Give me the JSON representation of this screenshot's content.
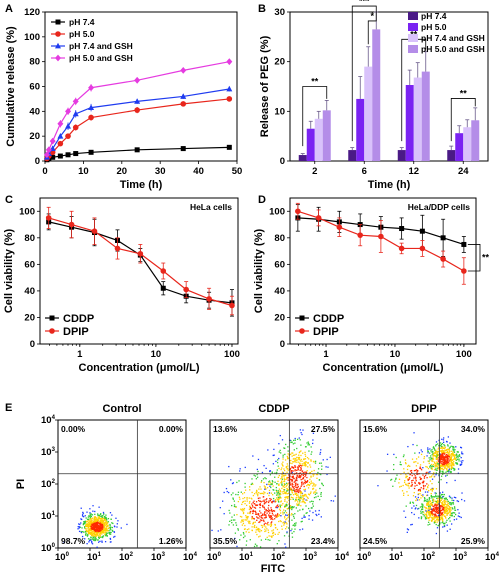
{
  "chart_data": [
    {
      "panel": "A",
      "type": "line",
      "xlabel": "Time (h)",
      "ylabel": "Cumulative release (%)",
      "xlim": [
        0,
        50
      ],
      "ylim": [
        0,
        120
      ],
      "xticks": [
        "0",
        "10",
        "20",
        "30",
        "40",
        "50"
      ],
      "yticks": [
        "0",
        "20",
        "40",
        "60",
        "80",
        "100",
        "120"
      ],
      "legend_position": "top-left",
      "series": [
        {
          "name": "pH 7.4",
          "color": "#000000",
          "marker": "square",
          "x": [
            0.5,
            1,
            2,
            4,
            6,
            8,
            12,
            24,
            36,
            48
          ],
          "y": [
            1,
            2,
            3,
            4,
            5,
            6,
            7,
            9,
            10,
            11
          ],
          "err": [
            0.5,
            0.5,
            0.5,
            0.8,
            0.8,
            0.8,
            1,
            1,
            1,
            1.2
          ]
        },
        {
          "name": "pH 5.0",
          "color": "#e8261c",
          "marker": "circle",
          "x": [
            0.5,
            1,
            2,
            4,
            6,
            8,
            12,
            24,
            36,
            48
          ],
          "y": [
            2,
            4,
            7,
            14,
            20,
            27,
            35,
            41,
            46,
            50
          ],
          "err": [
            1,
            1,
            1.5,
            2,
            2,
            2.5,
            2.5,
            2.5,
            2,
            2
          ]
        },
        {
          "name": "pH 7.4 and GSH",
          "color": "#1f3cf0",
          "marker": "triangle",
          "x": [
            0.5,
            1,
            2,
            4,
            6,
            8,
            12,
            24,
            36,
            48
          ],
          "y": [
            3,
            6,
            10,
            20,
            28,
            38,
            43,
            48,
            52,
            58
          ],
          "err": [
            1,
            1,
            2,
            2,
            3,
            3,
            3,
            2,
            2,
            2
          ]
        },
        {
          "name": "pH 5.0 and GSH",
          "color": "#e53be0",
          "marker": "diamond",
          "x": [
            0.5,
            1,
            2,
            4,
            6,
            8,
            12,
            24,
            36,
            48
          ],
          "y": [
            5,
            9,
            16,
            30,
            40,
            48,
            59,
            65,
            73,
            80
          ],
          "err": [
            1,
            1.5,
            2,
            3,
            3,
            3,
            3,
            2,
            2,
            2
          ]
        }
      ]
    },
    {
      "panel": "B",
      "type": "bar",
      "xlabel": "Time (h)",
      "ylabel": "Release of PEG (%)",
      "categories": [
        "2",
        "6",
        "12",
        "24"
      ],
      "ylim": [
        0,
        30
      ],
      "yticks": [
        "0",
        "10",
        "20",
        "30"
      ],
      "legend_position": "top-right",
      "series": [
        {
          "name": "pH 7.4",
          "color": "#4a1a86",
          "values": [
            1.2,
            2.2,
            2.2,
            2.2
          ],
          "err": [
            0.3,
            0.5,
            0.5,
            0.8
          ]
        },
        {
          "name": "pH 5.0",
          "color": "#7a23f2",
          "values": [
            6.5,
            12.5,
            15.3,
            5.6
          ],
          "err": [
            1.5,
            4.5,
            3,
            1.5
          ]
        },
        {
          "name": "pH 7.4 and GSH",
          "color": "#d9c2fb",
          "values": [
            8.5,
            19,
            16.8,
            6.8
          ],
          "err": [
            1.5,
            4,
            3,
            1.5
          ]
        },
        {
          "name": "pH 5.0 and GSH",
          "color": "#b48de8",
          "values": [
            10.2,
            26.5,
            18,
            8.2
          ],
          "err": [
            2,
            3.5,
            4,
            2.5
          ]
        }
      ],
      "annotations": [
        "**",
        "***",
        "*",
        "**",
        "**"
      ]
    },
    {
      "panel": "C",
      "type": "line",
      "title": "HeLa cells",
      "xlabel": "Concentration (μmol/L)",
      "ylabel": "Cell viability (%)",
      "xscale": "log",
      "xlim": [
        0.3,
        120
      ],
      "ylim": [
        0,
        110
      ],
      "xticks": [
        "1",
        "10",
        "100"
      ],
      "yticks": [
        "0",
        "20",
        "40",
        "60",
        "80",
        "100"
      ],
      "legend_position": "bottom-left",
      "series": [
        {
          "name": "CDDP",
          "color": "#000000",
          "marker": "square",
          "x": [
            0.39,
            0.78,
            1.56,
            3.13,
            6.25,
            12.5,
            25,
            50,
            100
          ],
          "y": [
            92,
            88,
            84,
            78,
            67,
            42,
            36,
            33,
            31
          ],
          "err": [
            6,
            8,
            10,
            8,
            5,
            5,
            5,
            6,
            10
          ]
        },
        {
          "name": "DPIP",
          "color": "#e8261c",
          "marker": "circle",
          "x": [
            0.39,
            0.78,
            1.56,
            3.13,
            6.25,
            12.5,
            25,
            50,
            100
          ],
          "y": [
            95,
            90,
            85,
            72,
            68,
            55,
            41,
            34,
            29
          ],
          "err": [
            8,
            10,
            10,
            8,
            7,
            6,
            6,
            8,
            7
          ]
        }
      ]
    },
    {
      "panel": "D",
      "type": "line",
      "title": "HeLa/DDP cells",
      "xlabel": "Concentration (μmol/L)",
      "ylabel": "Cell viability (%)",
      "xscale": "log",
      "xlim": [
        0.3,
        150
      ],
      "ylim": [
        0,
        110
      ],
      "xticks": [
        "1",
        "10",
        "100"
      ],
      "yticks": [
        "0",
        "20",
        "40",
        "60",
        "80",
        "100"
      ],
      "legend_position": "bottom-left",
      "series": [
        {
          "name": "CDDP",
          "color": "#000000",
          "marker": "square",
          "x": [
            0.39,
            0.78,
            1.56,
            3.13,
            6.25,
            12.5,
            25,
            50,
            100
          ],
          "y": [
            95,
            94,
            92,
            90,
            88,
            87,
            85,
            80,
            75
          ],
          "err": [
            10,
            9,
            8,
            8,
            8,
            8,
            12,
            14,
            6
          ]
        },
        {
          "name": "DPIP",
          "color": "#e8261c",
          "marker": "circle",
          "x": [
            0.39,
            0.78,
            1.56,
            3.13,
            6.25,
            12.5,
            25,
            50,
            100
          ],
          "y": [
            100,
            95,
            88,
            82,
            81,
            72,
            72,
            64,
            55
          ],
          "err": [
            6,
            6,
            7,
            8,
            12,
            4,
            6,
            6,
            10
          ]
        }
      ],
      "annotations": [
        "**"
      ]
    },
    {
      "panel": "E",
      "type": "scatter",
      "xlabel": "FITC",
      "ylabel": "PI",
      "xscale": "log",
      "yscale": "log",
      "xlim": [
        1,
        10000
      ],
      "ylim": [
        1,
        10000
      ],
      "plots": [
        {
          "title": "Control",
          "quadrants": {
            "upper_left": "0.00%",
            "upper_right": "0.00%",
            "lower_left": "98.7%",
            "lower_right": "1.26%"
          }
        },
        {
          "title": "CDDP",
          "quadrants": {
            "upper_left": "13.6%",
            "upper_right": "27.5%",
            "lower_left": "35.5%",
            "lower_right": "23.4%"
          }
        },
        {
          "title": "DPIP",
          "quadrants": {
            "upper_left": "15.6%",
            "upper_right": "34.0%",
            "lower_left": "24.5%",
            "lower_right": "25.9%"
          }
        }
      ]
    }
  ]
}
